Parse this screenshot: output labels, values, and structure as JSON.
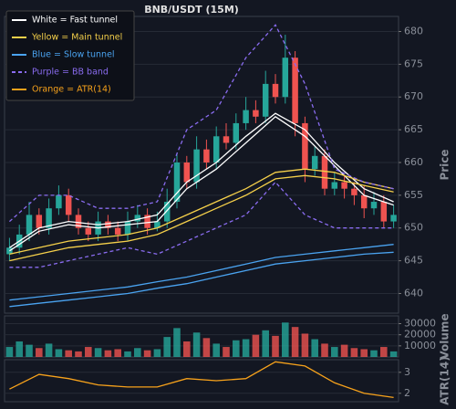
{
  "chart_data": [
    {
      "type": "candlestick",
      "title": "BNB/USDT (15M)",
      "ylabel": "Price",
      "xlim": [
        -0.5,
        39.5
      ],
      "open": [
        646,
        647,
        649,
        652,
        650,
        653,
        655,
        652,
        650,
        649,
        651,
        650,
        649,
        651,
        652,
        650,
        651,
        654,
        660,
        657,
        662,
        660,
        664,
        663,
        666,
        668,
        667,
        672,
        670,
        676,
        666,
        659,
        661,
        656,
        657,
        656,
        655,
        653,
        654,
        651
      ],
      "high": [
        648.5,
        650.5,
        654,
        653,
        654.5,
        656.5,
        656,
        653,
        651,
        652.5,
        652,
        651,
        652.5,
        653.5,
        653,
        652.5,
        656,
        661.5,
        661,
        664,
        663.5,
        665.5,
        666,
        667.5,
        670,
        669.5,
        674,
        673.5,
        679.5,
        677,
        667,
        662.5,
        662,
        658.5,
        658,
        657,
        656.5,
        655.5,
        655,
        653.5
      ],
      "low": [
        645,
        646,
        648,
        649,
        649,
        652,
        651,
        649,
        648,
        648,
        649,
        648,
        648,
        650,
        649,
        649.5,
        650,
        653,
        656,
        656,
        659,
        659,
        662,
        662,
        665,
        666,
        666,
        669,
        669,
        664,
        657,
        658,
        655,
        655,
        654.5,
        653.5,
        651.5,
        652,
        650,
        650
      ],
      "close": [
        647,
        649,
        652,
        650,
        653,
        655,
        652,
        650,
        649,
        651,
        650,
        649,
        651,
        652,
        650,
        651,
        654,
        660,
        657,
        662,
        660,
        664,
        663,
        666,
        668,
        667,
        672,
        670,
        676,
        666,
        659,
        661,
        656,
        657,
        656,
        655,
        653,
        654,
        651,
        652
      ],
      "up_color": "#26a69a",
      "down_color": "#ef5350",
      "ylim": [
        637,
        682.3
      ],
      "yticks": [
        640,
        645,
        650,
        655,
        660,
        665,
        670,
        675,
        680
      ],
      "grid": true,
      "legend": "upper left",
      "series": [
        {
          "name": "White = Fast tunnel",
          "color": "#ffffff",
          "x": [
            0,
            3,
            6,
            9,
            12,
            15,
            18,
            21,
            24,
            27,
            30,
            33,
            36,
            39
          ],
          "values": [
            647,
            650,
            651,
            650.5,
            651,
            652,
            657,
            660,
            664,
            667.5,
            665,
            660,
            656,
            654
          ]
        },
        {
          "color": "#ffffff",
          "x": [
            0,
            3,
            6,
            9,
            12,
            15,
            18,
            21,
            24,
            27,
            30,
            33,
            36,
            39
          ],
          "values": [
            646.5,
            649.5,
            650.5,
            650,
            650.5,
            651,
            656,
            659,
            663,
            667,
            664,
            659.5,
            655,
            653.5
          ]
        },
        {
          "name": "Yellow = Main tunnel",
          "color": "#f5d04a",
          "x": [
            0,
            3,
            6,
            9,
            12,
            15,
            18,
            21,
            24,
            27,
            30,
            33,
            36,
            39
          ],
          "values": [
            646,
            647,
            648,
            648.5,
            649,
            650,
            652,
            654,
            656,
            658.5,
            659,
            658.5,
            657,
            656
          ]
        },
        {
          "color": "#f5d04a",
          "x": [
            0,
            3,
            6,
            9,
            12,
            15,
            18,
            21,
            24,
            27,
            30,
            33,
            36,
            39
          ],
          "values": [
            645,
            646,
            647,
            647.5,
            648,
            649,
            651,
            653,
            655,
            657.5,
            658,
            657.5,
            656.5,
            655.5
          ]
        },
        {
          "name": "Blue = Slow tunnel",
          "color": "#4aa3f0",
          "x": [
            0,
            3,
            6,
            9,
            12,
            15,
            18,
            21,
            24,
            27,
            30,
            33,
            36,
            39
          ],
          "values": [
            639,
            639.5,
            640,
            640.5,
            641,
            641.8,
            642.5,
            643.5,
            644.5,
            645.5,
            646,
            646.5,
            647,
            647.5
          ]
        },
        {
          "color": "#4aa3f0",
          "x": [
            0,
            3,
            6,
            9,
            12,
            15,
            18,
            21,
            24,
            27,
            30,
            33,
            36,
            39
          ],
          "values": [
            638,
            638.5,
            639,
            639.5,
            640,
            640.8,
            641.5,
            642.5,
            643.5,
            644.5,
            645,
            645.5,
            646,
            646.3
          ]
        },
        {
          "name": "Purple = BB band",
          "color": "#8a6cf0",
          "dash": true,
          "x": [
            0,
            3,
            6,
            9,
            12,
            15,
            18,
            21,
            24,
            27,
            30,
            33,
            36,
            39
          ],
          "values": [
            651,
            655,
            655,
            653,
            653,
            654,
            665,
            668,
            676,
            681,
            672,
            659,
            657,
            656
          ]
        },
        {
          "color": "#8a6cf0",
          "dash": true,
          "x": [
            0,
            3,
            6,
            9,
            12,
            15,
            18,
            21,
            24,
            27,
            30,
            33,
            36,
            39
          ],
          "values": [
            644,
            644,
            645,
            646,
            647,
            646,
            648,
            650,
            652,
            657,
            652,
            650,
            650,
            650
          ]
        }
      ]
    },
    {
      "type": "bar",
      "ylabel": "Volume",
      "xlim": [
        -0.5,
        39.5
      ],
      "values": [
        9000,
        14000,
        11000,
        8000,
        12000,
        7000,
        6000,
        5000,
        9000,
        8000,
        6000,
        7000,
        5000,
        8000,
        6000,
        7000,
        18000,
        26000,
        14000,
        22000,
        17000,
        12000,
        9000,
        15000,
        16000,
        20000,
        24000,
        19000,
        31000,
        27000,
        21000,
        16000,
        12000,
        9000,
        11000,
        8000,
        7000,
        6000,
        9000,
        5000
      ],
      "ylim": [
        0,
        37000
      ],
      "yticks": [
        10000,
        20000,
        30000
      ],
      "grid": true
    },
    {
      "type": "line",
      "ylabel": "ATR(14)",
      "xlim": [
        -0.5,
        39.5
      ],
      "ylim": [
        1.6,
        3.6
      ],
      "yticks": [
        2,
        3
      ],
      "grid": true,
      "series": [
        {
          "name": "Orange = ATR(14)",
          "color": "#f7a21b",
          "x": [
            0,
            3,
            6,
            9,
            12,
            15,
            18,
            21,
            24,
            27,
            30,
            33,
            36,
            39
          ],
          "values": [
            2.2,
            2.9,
            2.7,
            2.4,
            2.3,
            2.3,
            2.7,
            2.6,
            2.7,
            3.5,
            3.3,
            2.5,
            2.0,
            1.8
          ]
        }
      ]
    }
  ]
}
